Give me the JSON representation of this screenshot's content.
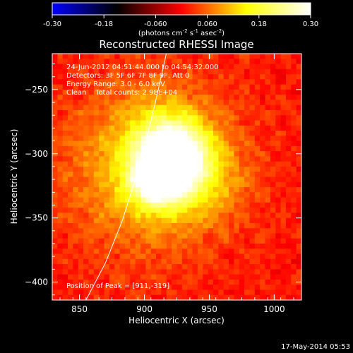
{
  "chart_data": {
    "type": "heatmap",
    "title": "Reconstructed RHESSI Image",
    "xlabel": "Heliocentric X (arcsec)",
    "ylabel": "Heliocentric Y (arcsec)",
    "xlim": [
      829,
      1021
    ],
    "ylim": [
      -414,
      -222
    ],
    "x_ticks": [
      850,
      900,
      950,
      1000
    ],
    "y_ticks": [
      -250,
      -300,
      -350,
      -400
    ],
    "colorbar": {
      "min": -0.3,
      "max": 0.3,
      "ticks": [
        "-0.30",
        "-0.18",
        "-0.060",
        "0.060",
        "0.18",
        "0.30"
      ],
      "label_base": "(photons cm",
      "label_exp1": "-2",
      "label_mid": " s",
      "label_exp2": "-1",
      "label_mid2": " asec",
      "label_exp3": "-2",
      "label_end": ")",
      "colormap": [
        "#0000ff",
        "#000000",
        "#ff0000",
        "#ffff00",
        "#ffffff"
      ]
    },
    "annotations": [
      "24-Jun-2012 04:51:44.000 to 04:54:32.000",
      "Detectors: 3F 5F 6F 7F 8F 9F, Att 0",
      "Energy Range: 3.0 - 6.0 keV",
      "Clean    Total counts: 2.98E+04"
    ],
    "peak_label": "Position of Peak = [911,-319]",
    "peak": [
      911,
      -319
    ],
    "limb_curve": [
      [
        855,
        -414
      ],
      [
        870,
        -385
      ],
      [
        883,
        -352
      ],
      [
        893,
        -320
      ],
      [
        901,
        -290
      ],
      [
        908,
        -262
      ],
      [
        914,
        -235
      ],
      [
        919,
        -212
      ]
    ],
    "sources": [
      {
        "x": 911,
        "y": -319,
        "sigma": 14,
        "amp": 0.3
      },
      {
        "x": 925,
        "y": -304,
        "sigma": 16,
        "amp": 0.19
      },
      {
        "x": 918,
        "y": -290,
        "sigma": 18,
        "amp": 0.13
      },
      {
        "x": 905,
        "y": -310,
        "sigma": 42,
        "amp": 0.13
      },
      {
        "x": 945,
        "y": -320,
        "sigma": 22,
        "amp": 0.06
      }
    ],
    "footer": "17-May-2014 05:53"
  }
}
